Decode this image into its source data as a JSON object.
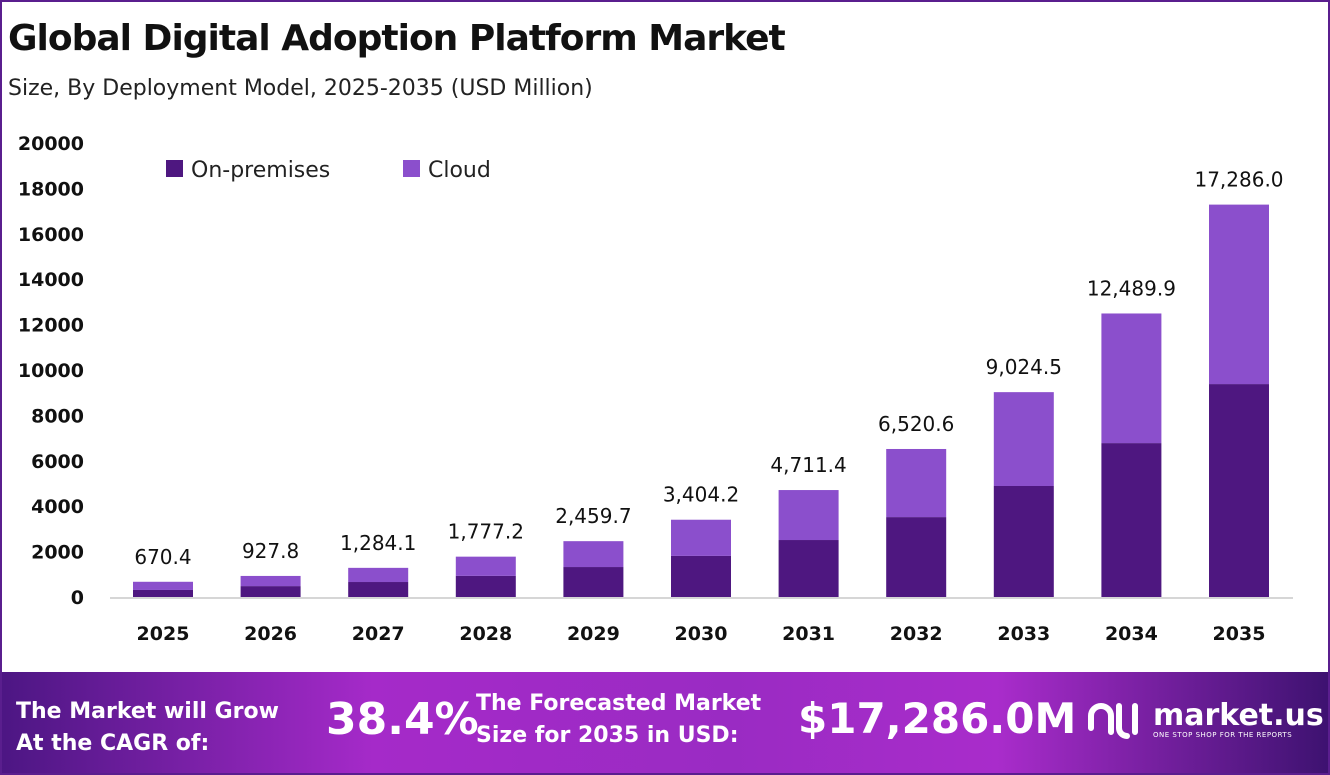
{
  "header": {
    "title": "Global Digital Adoption Platform Market",
    "subtitle": "Size, By Deployment Model, 2025-2035 (USD Million)"
  },
  "chart_data": {
    "type": "bar",
    "stacked": true,
    "categories": [
      "2025",
      "2026",
      "2027",
      "2028",
      "2029",
      "2030",
      "2031",
      "2032",
      "2033",
      "2034",
      "2035"
    ],
    "series": [
      {
        "name": "On-premises",
        "color": "#4e1780",
        "values": [
          310,
          480,
          660,
          930,
          1320,
          1810,
          2510,
          3520,
          4890,
          6780,
          9380
        ]
      },
      {
        "name": "Cloud",
        "color": "#8b4fcc",
        "values": [
          360.4,
          447.8,
          624.1,
          847.2,
          1139.7,
          1594.2,
          2201.4,
          3000.6,
          4134.5,
          5709.9,
          7906.0
        ]
      }
    ],
    "totals": [
      670.4,
      927.8,
      1284.1,
      1777.2,
      2459.7,
      3404.2,
      4711.4,
      6520.6,
      9024.5,
      12489.9,
      17286.0
    ],
    "total_labels": [
      "670.4",
      "927.8",
      "1,284.1",
      "1,777.2",
      "2,459.7",
      "3,404.2",
      "4,711.4",
      "6,520.6",
      "9,024.5",
      "12,489.9",
      "17,286.0"
    ],
    "yticks": [
      "0",
      "2000",
      "4000",
      "6000",
      "8000",
      "10000",
      "12000",
      "14000",
      "16000",
      "18000",
      "20000"
    ],
    "ylim": [
      0,
      20000
    ],
    "grid": false,
    "legend": "top-left"
  },
  "footer": {
    "cagr_label_1": "The Market will Grow",
    "cagr_label_2": "At the CAGR of:",
    "cagr": "38.4%",
    "forecast_label_1": "The Forecasted Market",
    "forecast_label_2": "Size for 2035 in USD:",
    "forecast": "$17,286.0M",
    "logo_name": "market.us",
    "logo_tag": "ONE STOP SHOP FOR THE REPORTS"
  }
}
